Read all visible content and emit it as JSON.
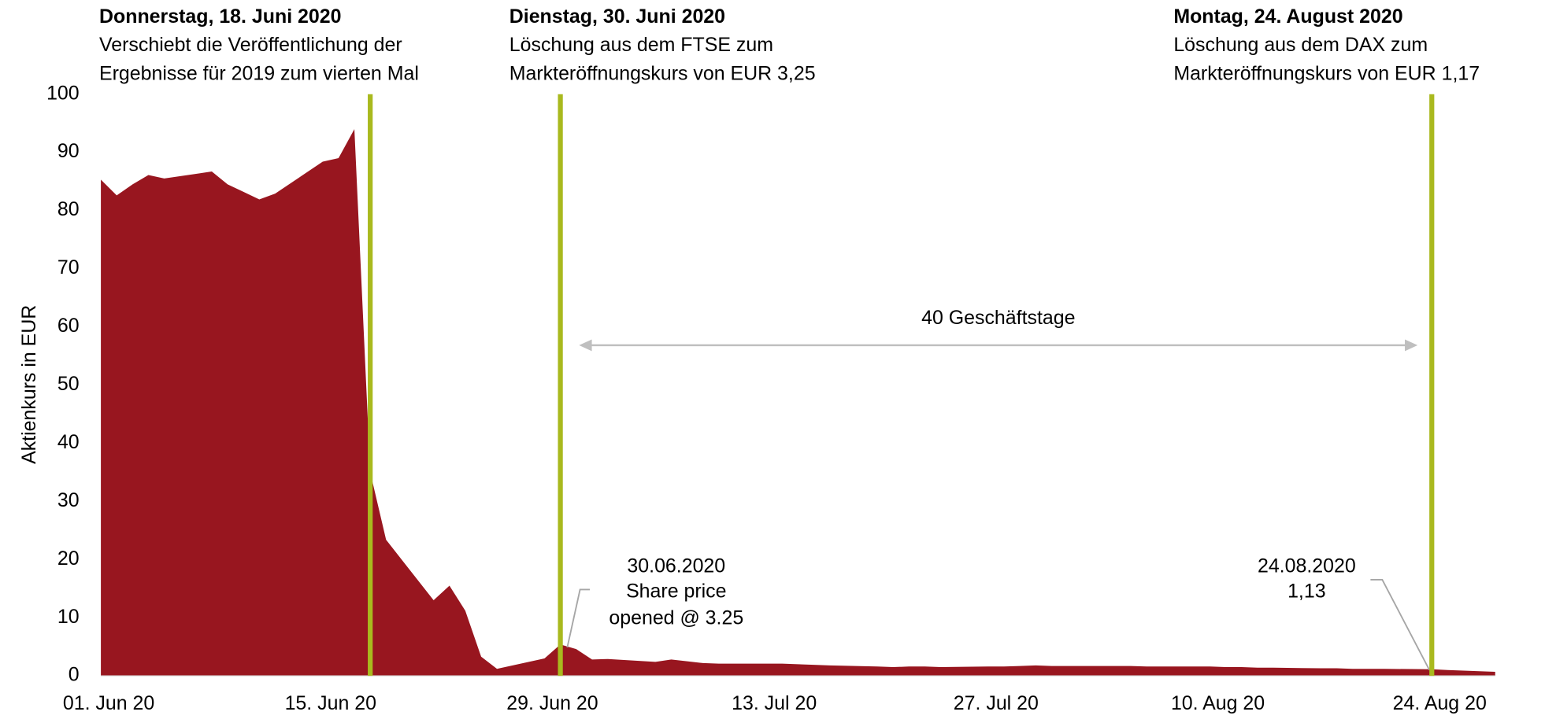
{
  "chart_data": {
    "type": "area",
    "y_label": "Aktienkurs in EUR",
    "color": "#98161f",
    "event_color": "#a9b91e",
    "x": [
      "2020-06-01",
      "2020-06-02",
      "2020-06-03",
      "2020-06-04",
      "2020-06-05",
      "2020-06-08",
      "2020-06-09",
      "2020-06-10",
      "2020-06-11",
      "2020-06-12",
      "2020-06-15",
      "2020-06-16",
      "2020-06-17",
      "2020-06-18",
      "2020-06-19",
      "2020-06-22",
      "2020-06-23",
      "2020-06-24",
      "2020-06-25",
      "2020-06-26",
      "2020-06-29",
      "2020-06-30",
      "2020-07-01",
      "2020-07-02",
      "2020-07-03",
      "2020-07-06",
      "2020-07-07",
      "2020-07-08",
      "2020-07-09",
      "2020-07-10",
      "2020-07-13",
      "2020-07-14",
      "2020-07-15",
      "2020-07-16",
      "2020-07-17",
      "2020-07-20",
      "2020-07-21",
      "2020-07-22",
      "2020-07-23",
      "2020-07-24",
      "2020-07-27",
      "2020-07-28",
      "2020-07-29",
      "2020-07-30",
      "2020-07-31",
      "2020-08-03",
      "2020-08-04",
      "2020-08-05",
      "2020-08-06",
      "2020-08-07",
      "2020-08-10",
      "2020-08-11",
      "2020-08-12",
      "2020-08-13",
      "2020-08-14",
      "2020-08-17",
      "2020-08-18",
      "2020-08-19",
      "2020-08-20",
      "2020-08-21",
      "2020-08-24",
      "2020-08-25",
      "2020-08-26",
      "2020-08-27",
      "2020-08-28"
    ],
    "values": [
      85.3,
      82.6,
      84.5,
      86.1,
      85.5,
      86.7,
      84.5,
      83.2,
      81.9,
      82.9,
      88.4,
      89.0,
      94.0,
      35.0,
      23.4,
      13.0,
      15.5,
      11.2,
      3.3,
      1.2,
      3.0,
      5.4,
      4.6,
      2.8,
      2.9,
      2.4,
      2.8,
      2.5,
      2.2,
      2.1,
      2.1,
      2.1,
      2.0,
      1.9,
      1.8,
      1.6,
      1.5,
      1.6,
      1.6,
      1.5,
      1.6,
      1.6,
      1.7,
      1.8,
      1.7,
      1.7,
      1.7,
      1.7,
      1.6,
      1.6,
      1.6,
      1.5,
      1.5,
      1.4,
      1.4,
      1.3,
      1.3,
      1.2,
      1.2,
      1.2,
      1.13,
      1.0,
      0.9,
      0.8,
      0.7
    ],
    "xlim": [
      "2020-06-01",
      "2020-08-28"
    ],
    "xticks": [
      {
        "value": "2020-06-01",
        "label": "01. Jun 20"
      },
      {
        "value": "2020-06-15",
        "label": "15. Jun 20"
      },
      {
        "value": "2020-06-29",
        "label": "29. Jun 20"
      },
      {
        "value": "2020-07-13",
        "label": "13. Jul 20"
      },
      {
        "value": "2020-07-27",
        "label": "27. Jul 20"
      },
      {
        "value": "2020-08-10",
        "label": "10. Aug 20"
      },
      {
        "value": "2020-08-24",
        "label": "24. Aug 20"
      }
    ],
    "ylim": [
      0,
      100
    ],
    "yticks": [
      0,
      10,
      20,
      30,
      40,
      50,
      60,
      70,
      80,
      90,
      100
    ],
    "events": [
      {
        "date": "2020-06-18",
        "title": "Donnerstag, 18. Juni 2020",
        "lines": [
          "Verschiebt die Veröffentlichung der",
          "Ergebnisse für 2019 zum vierten Mal"
        ]
      },
      {
        "date": "2020-06-30",
        "title": "Dienstag, 30. Juni 2020",
        "lines": [
          "Löschung aus dem FTSE zum",
          "Markteröffnungskurs von EUR 3,25"
        ]
      },
      {
        "date": "2020-08-24",
        "title": "Montag, 24. August 2020",
        "lines": [
          "Löschung aus dem DAX zum",
          "Markteröffnungskurs von EUR 1,17"
        ]
      }
    ],
    "span_label": "40 Geschäftstage",
    "callouts": [
      {
        "lines": [
          "30.06.2020",
          "Share price",
          "opened @ 3.25"
        ]
      },
      {
        "lines": [
          "24.08.2020",
          "1,13"
        ]
      }
    ]
  }
}
